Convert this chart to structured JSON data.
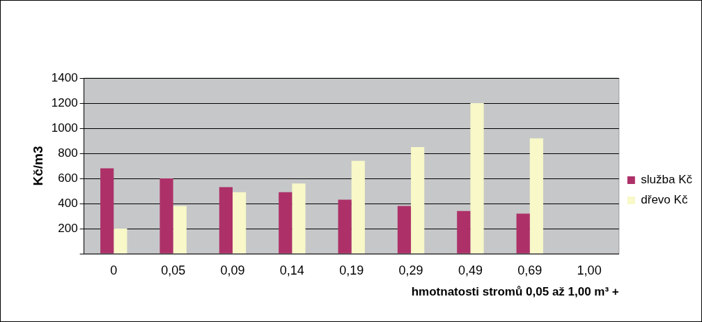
{
  "chart_data": {
    "type": "bar",
    "xlabel": "hmotnatosti stromů 0,05 až 1,00 m³ +",
    "ylabel": "Kč/m3",
    "categories": [
      "0",
      "0,05",
      "0,09",
      "0,14",
      "0,19",
      "0,29",
      "0,49",
      "0,69",
      "1,00"
    ],
    "series": [
      {
        "name": "služba Kč",
        "color": "#ad3168",
        "values": [
          680,
          600,
          530,
          490,
          430,
          380,
          340,
          320,
          null
        ]
      },
      {
        "name": "dřevo Kč",
        "color": "#f8f8c8",
        "values": [
          200,
          380,
          490,
          560,
          740,
          850,
          1200,
          920,
          null
        ]
      }
    ],
    "ylim": [
      0,
      1400
    ],
    "yticks": [
      {
        "value": 0,
        "label": null
      },
      200,
      400,
      600,
      800,
      1000,
      1200,
      1400
    ],
    "grid": "y",
    "legend": "right"
  }
}
